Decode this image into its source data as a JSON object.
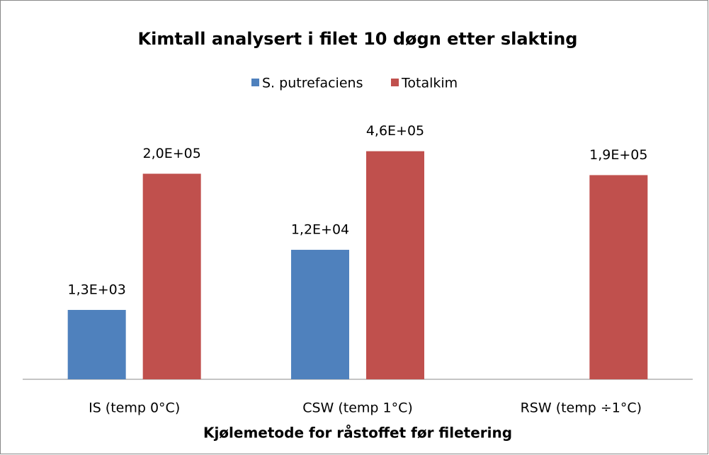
{
  "chart_data": {
    "type": "bar",
    "title": "Kimtall analysert i filet 10 døgn etter slakting",
    "x_label": "Kjølemetode for råstoffet før filetering",
    "categories": [
      "IS (temp 0°C)",
      "CSW (temp 1°C)",
      "RSW (temp ÷1°C)"
    ],
    "series": [
      {
        "name": "S. putrefaciens",
        "color": "#4f81bd",
        "values": [
          1300,
          12000,
          null
        ],
        "value_labels": [
          "1,3E+03",
          "1,2E+04",
          null
        ]
      },
      {
        "name": "Totalkim",
        "color": "#c0504d",
        "values": [
          200000,
          460000,
          190000
        ],
        "value_labels": [
          "2,0E+05",
          "4,6E+05",
          "1,9E+05"
        ]
      }
    ],
    "log_scale": true,
    "ylim": [
      100,
      10000000
    ],
    "legend": "top"
  }
}
